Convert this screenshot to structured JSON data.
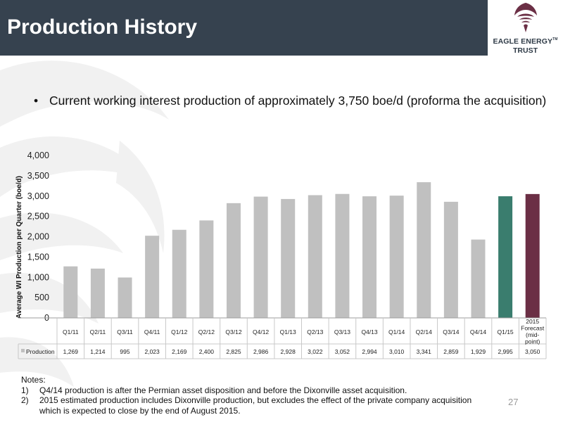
{
  "slide": {
    "title": "Production History",
    "bullet_symbol": "•",
    "bullet": "Current working interest production of approximately 3,750 boe/d (proforma the acquisition)",
    "page_number": "27"
  },
  "logo": {
    "line1": "EAGLE ENERGY",
    "tm": "TM",
    "line2": "TRUST"
  },
  "notes": {
    "heading": "Notes:",
    "items": [
      {
        "num": "1)",
        "text": "Q4/14 production is after the Permian asset disposition and before the Dixonville asset acquisition."
      },
      {
        "num": "2)",
        "text": "2015 estimated production includes Dixonville production, but excludes the effect of the private company acquisition which is expected to close by the end of August 2015."
      }
    ]
  },
  "colors": {
    "title_bar": "#36424f",
    "bar_default": "#c0c0c0",
    "bar_q1_15": "#3a7d6e",
    "bar_2015_forecast": "#6b2f45"
  },
  "chart_data": {
    "type": "bar",
    "ylabel": "Average WI Production per Quarter (boe/d)",
    "ylim": [
      0,
      4000
    ],
    "yticks": [
      "0",
      "500",
      "1,000",
      "1,500",
      "2,000",
      "2,500",
      "3,000",
      "3,500",
      "4,000"
    ],
    "grid": false,
    "legend": "table-row",
    "categories": [
      "Q1/11",
      "Q2/11",
      "Q3/11",
      "Q4/11",
      "Q1/12",
      "Q2/12",
      "Q3/12",
      "Q4/12",
      "Q1/13",
      "Q2/13",
      "Q3/13",
      "Q4/13",
      "Q1/14",
      "Q2/14",
      "Q3/14",
      "Q4/14",
      "Q1/15",
      "2015 Forecast (mid-point)"
    ],
    "series": [
      {
        "name": "Production",
        "values": [
          1269,
          1214,
          995,
          2023,
          2169,
          2400,
          2825,
          2986,
          2928,
          3022,
          3052,
          2994,
          3010,
          3341,
          2859,
          1929,
          2995,
          3050
        ],
        "labels": [
          "1,269",
          "1,214",
          "995",
          "2,023",
          "2,169",
          "2,400",
          "2,825",
          "2,986",
          "2,928",
          "3,022",
          "3,052",
          "2,994",
          "3,010",
          "3,341",
          "2,859",
          "1,929",
          "2,995",
          "3,050"
        ]
      }
    ]
  }
}
